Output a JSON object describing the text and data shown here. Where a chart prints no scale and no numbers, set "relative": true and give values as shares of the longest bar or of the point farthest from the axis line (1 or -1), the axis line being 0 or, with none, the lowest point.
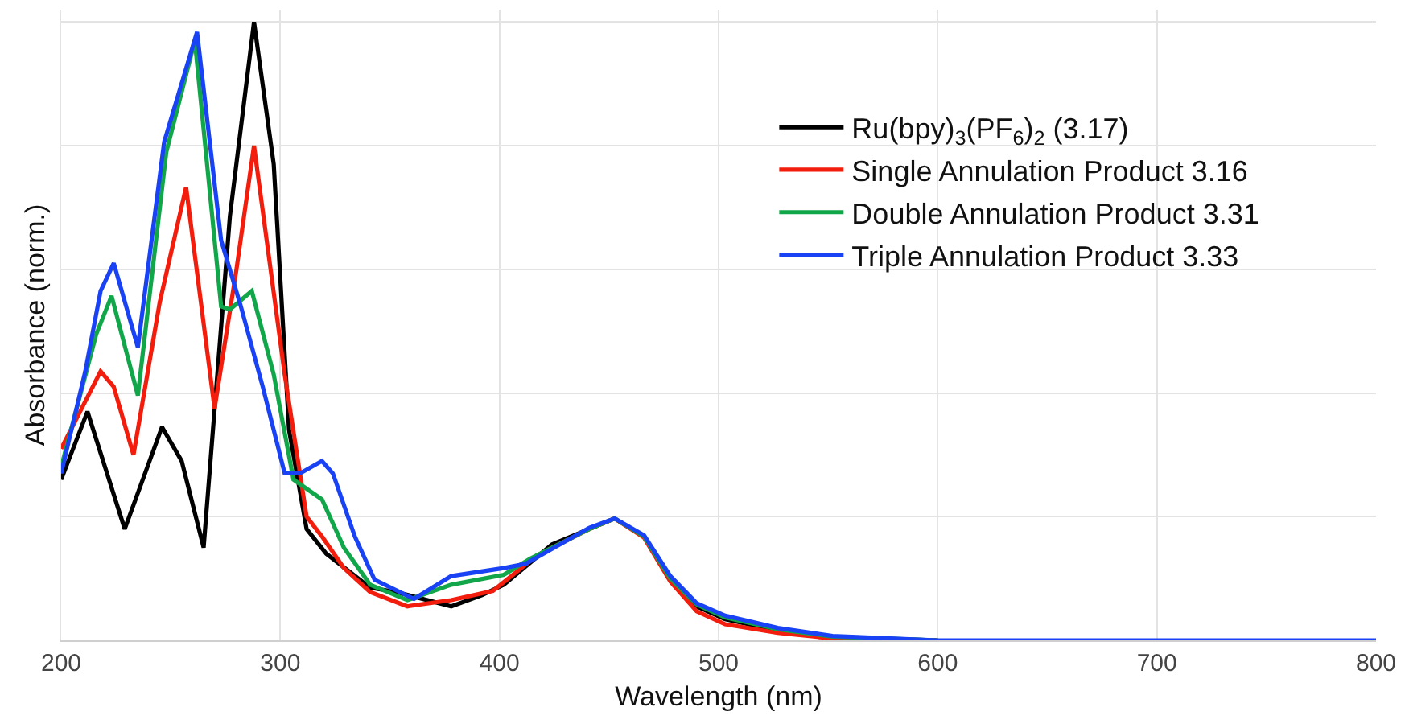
{
  "chart_data": {
    "type": "line",
    "relative": true,
    "xlabel": "Wavelength (nm)",
    "ylabel": "Absorbance (norm.)",
    "xlim": [
      200,
      800
    ],
    "xticks": [
      200,
      300,
      400,
      500,
      600,
      700,
      800
    ],
    "grid": true,
    "legend": "top right",
    "line_style": "solid",
    "marker": "none",
    "series": [
      {
        "name": "Ru(bpy)$_{3}$(PF$_{6}$)$_{2}$ (3.17)",
        "color": "#000000",
        "x": [
          200,
          212,
          229,
          246,
          255,
          265,
          277,
          288,
          297,
          304,
          312,
          321,
          341,
          353,
          378,
          392,
          402,
          424,
          441,
          452.6,
          466,
          478,
          490,
          503,
          527,
          552,
          600
        ],
        "values": [
          0.26,
          0.37,
          0.18,
          0.345,
          0.29,
          0.15,
          0.686,
          1.0,
          0.77,
          0.34,
          0.18,
          0.14,
          0.085,
          0.078,
          0.055,
          0.073,
          0.09,
          0.155,
          0.18,
          0.197,
          0.168,
          0.098,
          0.055,
          0.034,
          0.016,
          0.005,
          0
        ]
      },
      {
        "name": "Single Annulation Product 3.16",
        "color": "#f21d0c",
        "x": [
          200,
          218,
          224,
          233,
          245,
          257,
          270,
          280,
          288,
          302,
          312,
          319,
          329,
          341,
          358,
          378,
          397,
          417,
          441,
          452.6,
          466,
          478,
          490,
          503,
          527,
          552,
          600
        ],
        "values": [
          0.31,
          0.435,
          0.41,
          0.3,
          0.547,
          0.733,
          0.375,
          0.6,
          0.8,
          0.43,
          0.2,
          0.168,
          0.117,
          0.078,
          0.055,
          0.065,
          0.08,
          0.137,
          0.18,
          0.197,
          0.166,
          0.095,
          0.047,
          0.026,
          0.012,
          0.003,
          0
        ]
      },
      {
        "name": "Double Annulation Product 3.31",
        "color": "#12a64a",
        "x": [
          200,
          216,
          223,
          235,
          248,
          261,
          273,
          277,
          287,
          297,
          306,
          319,
          329,
          341,
          358,
          378,
          402,
          414,
          441,
          452.6,
          466,
          478,
          490,
          503,
          527,
          552,
          600
        ],
        "values": [
          0.28,
          0.495,
          0.557,
          0.396,
          0.79,
          0.97,
          0.54,
          0.535,
          0.565,
          0.43,
          0.26,
          0.228,
          0.15,
          0.09,
          0.065,
          0.09,
          0.106,
          0.132,
          0.18,
          0.197,
          0.168,
          0.1,
          0.058,
          0.037,
          0.018,
          0.006,
          0
        ]
      },
      {
        "name": "Triple Annulation Product 3.33",
        "color": "#1942f5",
        "x": [
          200,
          211,
          218,
          224,
          235,
          247,
          262,
          273,
          282,
          292,
          302,
          309,
          319,
          324,
          334,
          343,
          361,
          378,
          402,
          412,
          441,
          452.6,
          466,
          478,
          490,
          503,
          527,
          552,
          600,
          700,
          800
        ],
        "values": [
          0.27,
          0.435,
          0.565,
          0.61,
          0.474,
          0.806,
          0.984,
          0.647,
          0.54,
          0.41,
          0.27,
          0.27,
          0.29,
          0.27,
          0.168,
          0.098,
          0.067,
          0.104,
          0.117,
          0.124,
          0.182,
          0.197,
          0.17,
          0.104,
          0.06,
          0.04,
          0.02,
          0.007,
          0,
          0,
          0
        ]
      }
    ]
  }
}
